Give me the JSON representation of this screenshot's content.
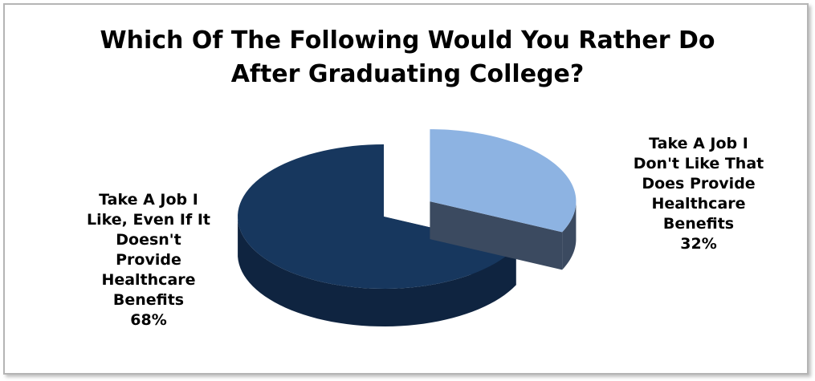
{
  "chart_data": {
    "type": "pie",
    "title_lines": [
      "Which Of The Following Would You Rather Do",
      "After Graduating College?"
    ],
    "slices": [
      {
        "label_lines": [
          "Take A Job I",
          "Don't Like That",
          "Does Provide",
          "Healthcare",
          "Benefits"
        ],
        "value": 32,
        "value_label": "32%",
        "color": "#8db3e2",
        "side_color": "#3b4a60",
        "exploded": true
      },
      {
        "label_lines": [
          "Take A Job I",
          "Like, Even If It",
          "Doesn't",
          "Provide",
          "Healthcare",
          "Benefits"
        ],
        "value": 68,
        "value_label": "68%",
        "color": "#17375e",
        "side_color": "#0f2440",
        "exploded": false
      }
    ]
  }
}
